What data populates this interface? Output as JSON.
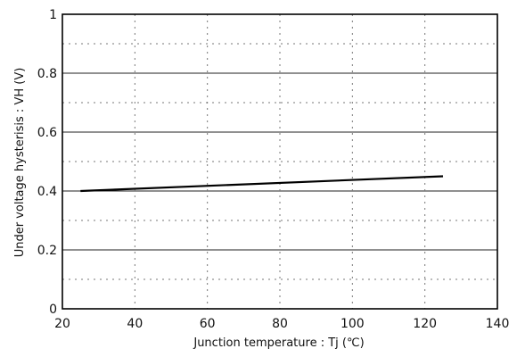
{
  "chart_data": {
    "type": "line",
    "title": "",
    "xlabel": "Junction temperature : Tj (℃)",
    "ylabel": "Under voltage hysterisis : VH (V)",
    "xlim": [
      20,
      140
    ],
    "ylim": [
      0,
      1
    ],
    "x_ticks": [
      "20",
      "40",
      "60",
      "80",
      "100",
      "120",
      "140"
    ],
    "y_ticks": [
      "0",
      "0.2",
      "0.4",
      "0.6",
      "0.8",
      "1"
    ],
    "grid": true,
    "series": [
      {
        "x": [
          25,
          125
        ],
        "y": [
          0.4,
          0.45
        ]
      }
    ]
  }
}
